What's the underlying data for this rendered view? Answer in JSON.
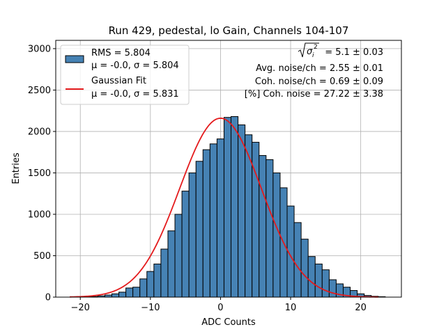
{
  "chart_data": {
    "type": "bar",
    "title": "Run 429, pedestal, lo Gain, Channels 104-107",
    "xlabel": "ADC Counts",
    "ylabel": "Entries",
    "xlim": [
      -23.5,
      25.8
    ],
    "ylim": [
      0,
      3100
    ],
    "grid": true,
    "legend_position": "top-left",
    "colors": {
      "histogram": "#4682b4",
      "edge": "#000000",
      "fit": "#e41a1c"
    },
    "x_ticks": [
      -20,
      -10,
      0,
      10,
      20
    ],
    "x_tick_labels": [
      "−20",
      "−10",
      "0",
      "10",
      "20"
    ],
    "y_ticks": [
      0,
      500,
      1000,
      1500,
      2000,
      2500,
      3000
    ],
    "y_tick_labels": [
      "0",
      "500",
      "1000",
      "1500",
      "2000",
      "2500",
      "3000"
    ],
    "histogram": {
      "bin_width": 1,
      "bin_start": -20.5,
      "values": [
        2,
        4,
        7,
        15,
        25,
        40,
        60,
        110,
        120,
        220,
        310,
        400,
        580,
        800,
        1000,
        1280,
        1500,
        1640,
        1780,
        1850,
        1910,
        2170,
        2180,
        2080,
        1960,
        1870,
        1710,
        1660,
        1500,
        1320,
        1100,
        900,
        700,
        490,
        400,
        330,
        210,
        160,
        120,
        80,
        40,
        20,
        10,
        5
      ]
    },
    "fit": {
      "mean": 0.0,
      "sigma": 5.831,
      "amplitude": 2160,
      "x_range": [
        -21.5,
        22.5
      ]
    },
    "series": [
      {
        "name": "RMS = 5.804",
        "detail": "μ = -0.0, σ = 5.804",
        "kind": "histogram"
      },
      {
        "name": "Gaussian Fit",
        "detail": "μ = -0.0, σ = 5.831",
        "kind": "line"
      }
    ],
    "annotations": {
      "line1_value": "= 5.1 ± 0.03",
      "line2": "Avg. noise/ch = 2.55 ± 0.01",
      "line3": "Coh. noise/ch = 0.69 ± 0.09",
      "line4": "[%] Coh. noise = 27.22 ± 3.38"
    }
  }
}
